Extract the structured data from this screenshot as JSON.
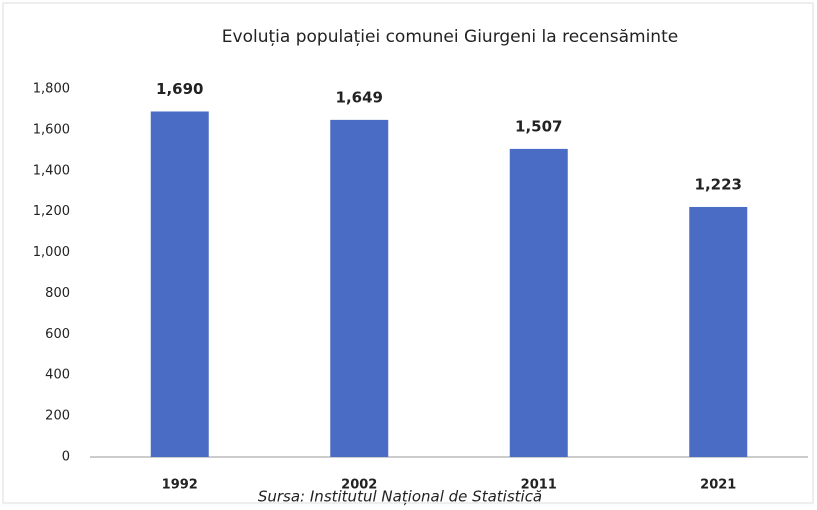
{
  "chart_data": {
    "type": "bar",
    "title": "Evoluția populației comunei Giurgeni la recensăminte",
    "source": "Sursa: Institutul Național de Statistică",
    "categories": [
      "1992",
      "2002",
      "2011",
      "2021"
    ],
    "values": [
      1690,
      1649,
      1507,
      1223
    ],
    "value_labels": [
      "1,690",
      "1,649",
      "1,507",
      "1,223"
    ],
    "color": "#4a6cc4",
    "ylim": [
      0,
      1800
    ],
    "yticks": [
      0,
      200,
      400,
      600,
      800,
      {
        "value": 1000,
        "label": "1,000"
      },
      {
        "value": 1200,
        "label": "1,200"
      },
      {
        "value": 1400,
        "label": "1,400"
      },
      {
        "value": 1600,
        "label": "1,600"
      },
      {
        "value": 1800,
        "label": "1,800"
      }
    ],
    "grid": false
  }
}
